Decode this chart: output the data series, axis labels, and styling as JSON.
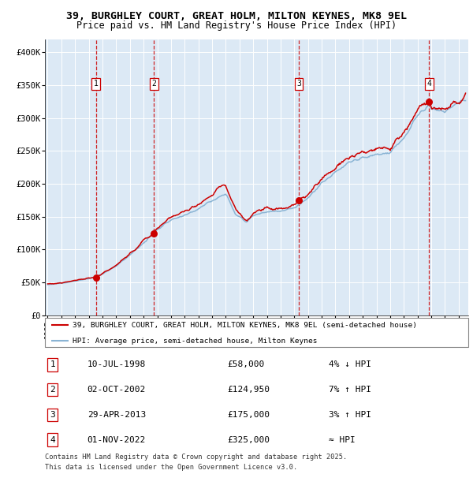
{
  "title_line1": "39, BURGHLEY COURT, GREAT HOLM, MILTON KEYNES, MK8 9EL",
  "title_line2": "Price paid vs. HM Land Registry's House Price Index (HPI)",
  "ylabel_ticks": [
    "£0",
    "£50K",
    "£100K",
    "£150K",
    "£200K",
    "£250K",
    "£300K",
    "£350K",
    "£400K"
  ],
  "ytick_values": [
    0,
    50000,
    100000,
    150000,
    200000,
    250000,
    300000,
    350000,
    400000
  ],
  "ylim": [
    0,
    420000
  ],
  "xlim_start": 1994.8,
  "xlim_end": 2025.7,
  "plot_bg_color": "#dce9f5",
  "grid_color": "#ffffff",
  "red_line_color": "#cc0000",
  "blue_line_color": "#8ab4d4",
  "sale_marker_color": "#cc0000",
  "vline_color": "#cc0000",
  "sale_dates_year": [
    1998.53,
    2002.75,
    2013.33,
    2022.84
  ],
  "sale_prices": [
    58000,
    124950,
    175000,
    325000
  ],
  "sale_labels": [
    "1",
    "2",
    "3",
    "4"
  ],
  "legend_line1": "39, BURGHLEY COURT, GREAT HOLM, MILTON KEYNES, MK8 9EL (semi-detached house)",
  "legend_line2": "HPI: Average price, semi-detached house, Milton Keynes",
  "table_entries": [
    {
      "num": "1",
      "date": "10-JUL-1998",
      "price": "£58,000",
      "note": "4% ↓ HPI"
    },
    {
      "num": "2",
      "date": "02-OCT-2002",
      "price": "£124,950",
      "note": "7% ↑ HPI"
    },
    {
      "num": "3",
      "date": "29-APR-2013",
      "price": "£175,000",
      "note": "3% ↑ HPI"
    },
    {
      "num": "4",
      "date": "01-NOV-2022",
      "price": "£325,000",
      "note": "≈ HPI"
    }
  ],
  "footnote_line1": "Contains HM Land Registry data © Crown copyright and database right 2025.",
  "footnote_line2": "This data is licensed under the Open Government Licence v3.0."
}
